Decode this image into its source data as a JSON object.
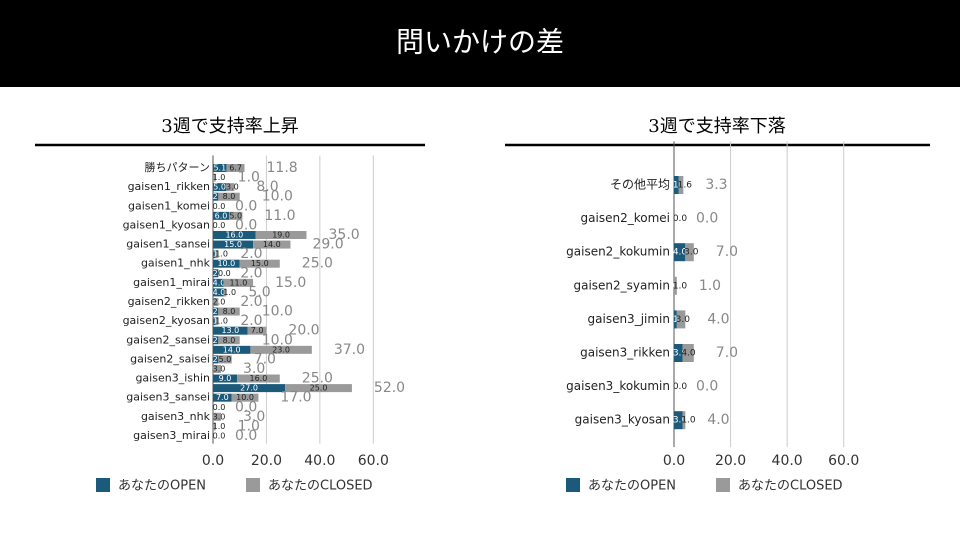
{
  "header": {
    "title": "問いかけの差"
  },
  "chart_data": [
    {
      "type": "bar",
      "orientation": "horizontal",
      "stacked": true,
      "title": "3週で支持率上昇",
      "categories": [
        "勝ちパターン",
        null,
        "gaisen1_rikken",
        null,
        "gaisen1_komei",
        null,
        "gaisen1_kyosan",
        null,
        "gaisen1_sansei",
        null,
        "gaisen1_nhk",
        null,
        "gaisen1_mirai",
        null,
        "gaisen2_rikken",
        null,
        "gaisen2_kyosan",
        null,
        "gaisen2_sansei",
        null,
        "gaisen2_saisei",
        null,
        "gaisen3_ishin",
        null,
        "gaisen3_sansei",
        null,
        "gaisen3_nhk",
        null,
        "gaisen3_mirai"
      ],
      "series": [
        {
          "name": "あなたのOPEN",
          "color": "#1b5a7a",
          "values": [
            5.1,
            0,
            5,
            2,
            0,
            6,
            0,
            16,
            15,
            1,
            10,
            2,
            4,
            4,
            0,
            2,
            1,
            13,
            2,
            14,
            2,
            0,
            9,
            27,
            7,
            0,
            0,
            0,
            0
          ],
          "value_labels": [
            "5.1",
            "0.0",
            "5.0",
            "2.0",
            "0.0",
            "6.0",
            "0.0",
            "16.0",
            "15.0",
            "1.0",
            "10.0",
            "2.0",
            "4.0",
            "4.0",
            "0.0",
            "2.0",
            "1.0",
            "13.0",
            "2.0",
            "14.0",
            "2.0",
            "0.0",
            "9.0",
            "27.0",
            "7.0",
            "0.0",
            "0.0",
            "0.0",
            "0.0"
          ]
        },
        {
          "name": "あなたのCLOSED",
          "color": "#9a9a9a",
          "values": [
            6.7,
            1,
            3,
            8,
            0,
            5,
            0,
            19,
            14,
            1,
            15,
            0,
            11,
            1,
            2,
            8,
            1,
            7,
            8,
            23,
            5,
            3,
            16,
            25,
            10,
            0,
            3,
            1,
            0
          ],
          "value_labels": [
            "6.7",
            "1.0",
            "3.0",
            "8.0",
            "0.0",
            "5.0",
            "0.0",
            "19.0",
            "14.0",
            "1.0",
            "15.0",
            "0.0",
            "11.0",
            "1.0",
            "2.0",
            "8.0",
            "1.0",
            "7.0",
            "8.0",
            "23.0",
            "5.0",
            "3.0",
            "16.0",
            "25.0",
            "10.0",
            "0.0",
            "3.0",
            "1.0",
            "0.0"
          ]
        }
      ],
      "totals": [
        11.8,
        1,
        8,
        10,
        0,
        11,
        0,
        35,
        29,
        2,
        25,
        2,
        15,
        5,
        2,
        10,
        2,
        20,
        10,
        37,
        7,
        3,
        25,
        52,
        17,
        0,
        3,
        1,
        0
      ],
      "total_labels": [
        "11.8",
        "1.0",
        "8.0",
        "10.0",
        "0.0",
        "11.0",
        "0.0",
        "35.0",
        "29.0",
        "2.0",
        "25.0",
        "2.0",
        "15.0",
        "5.0",
        "2.0",
        "10.0",
        "2.0",
        "20.0",
        "10.0",
        "37.0",
        "7.0",
        "3.0",
        "25.0",
        "52.0",
        "17.0",
        "0.0",
        "3.0",
        "1.0",
        "0.0"
      ],
      "xlim": [
        0,
        70
      ],
      "xticks": [
        {
          "value": 0,
          "label": "0.0"
        },
        {
          "value": 20,
          "label": "20.0"
        },
        {
          "value": 40,
          "label": "40.0"
        },
        {
          "value": 60,
          "label": "60.0"
        }
      ],
      "grid": true,
      "legend": "bottom"
    },
    {
      "type": "bar",
      "orientation": "horizontal",
      "stacked": true,
      "title": "3週で支持率下落",
      "categories": [
        "その他平均",
        "gaisen2_komei",
        "gaisen2_kokumin",
        "gaisen2_syamin",
        "gaisen3_jimin",
        "gaisen3_rikken",
        "gaisen3_kokumin",
        "gaisen3_kyosan"
      ],
      "series": [
        {
          "name": "あなたのOPEN",
          "color": "#1b5a7a",
          "values": [
            1.7,
            0,
            4,
            0,
            1,
            3,
            0,
            3
          ],
          "value_labels": [
            "1.7",
            "0.0",
            "4.0",
            "0.0",
            "1.0",
            "3.0",
            "0.0",
            "3.0"
          ]
        },
        {
          "name": "あなたのCLOSED",
          "color": "#9a9a9a",
          "values": [
            1.6,
            0,
            3,
            1,
            3,
            4,
            0,
            1
          ],
          "value_labels": [
            "1.6",
            "0.0",
            "3.0",
            "1.0",
            "3.0",
            "4.0",
            "0.0",
            "1.0"
          ]
        }
      ],
      "totals": [
        3.3,
        0,
        7,
        1,
        4,
        7,
        0,
        4
      ],
      "total_labels": [
        "3.3",
        "0.0",
        "7.0",
        "1.0",
        "4.0",
        "7.0",
        "0.0",
        "4.0"
      ],
      "xlim": [
        0,
        70
      ],
      "xticks": [
        {
          "value": 0,
          "label": "0.0"
        },
        {
          "value": 20,
          "label": "20.0"
        },
        {
          "value": 40,
          "label": "40.0"
        },
        {
          "value": 60,
          "label": "60.0"
        }
      ],
      "grid": true,
      "legend": "bottom"
    }
  ]
}
